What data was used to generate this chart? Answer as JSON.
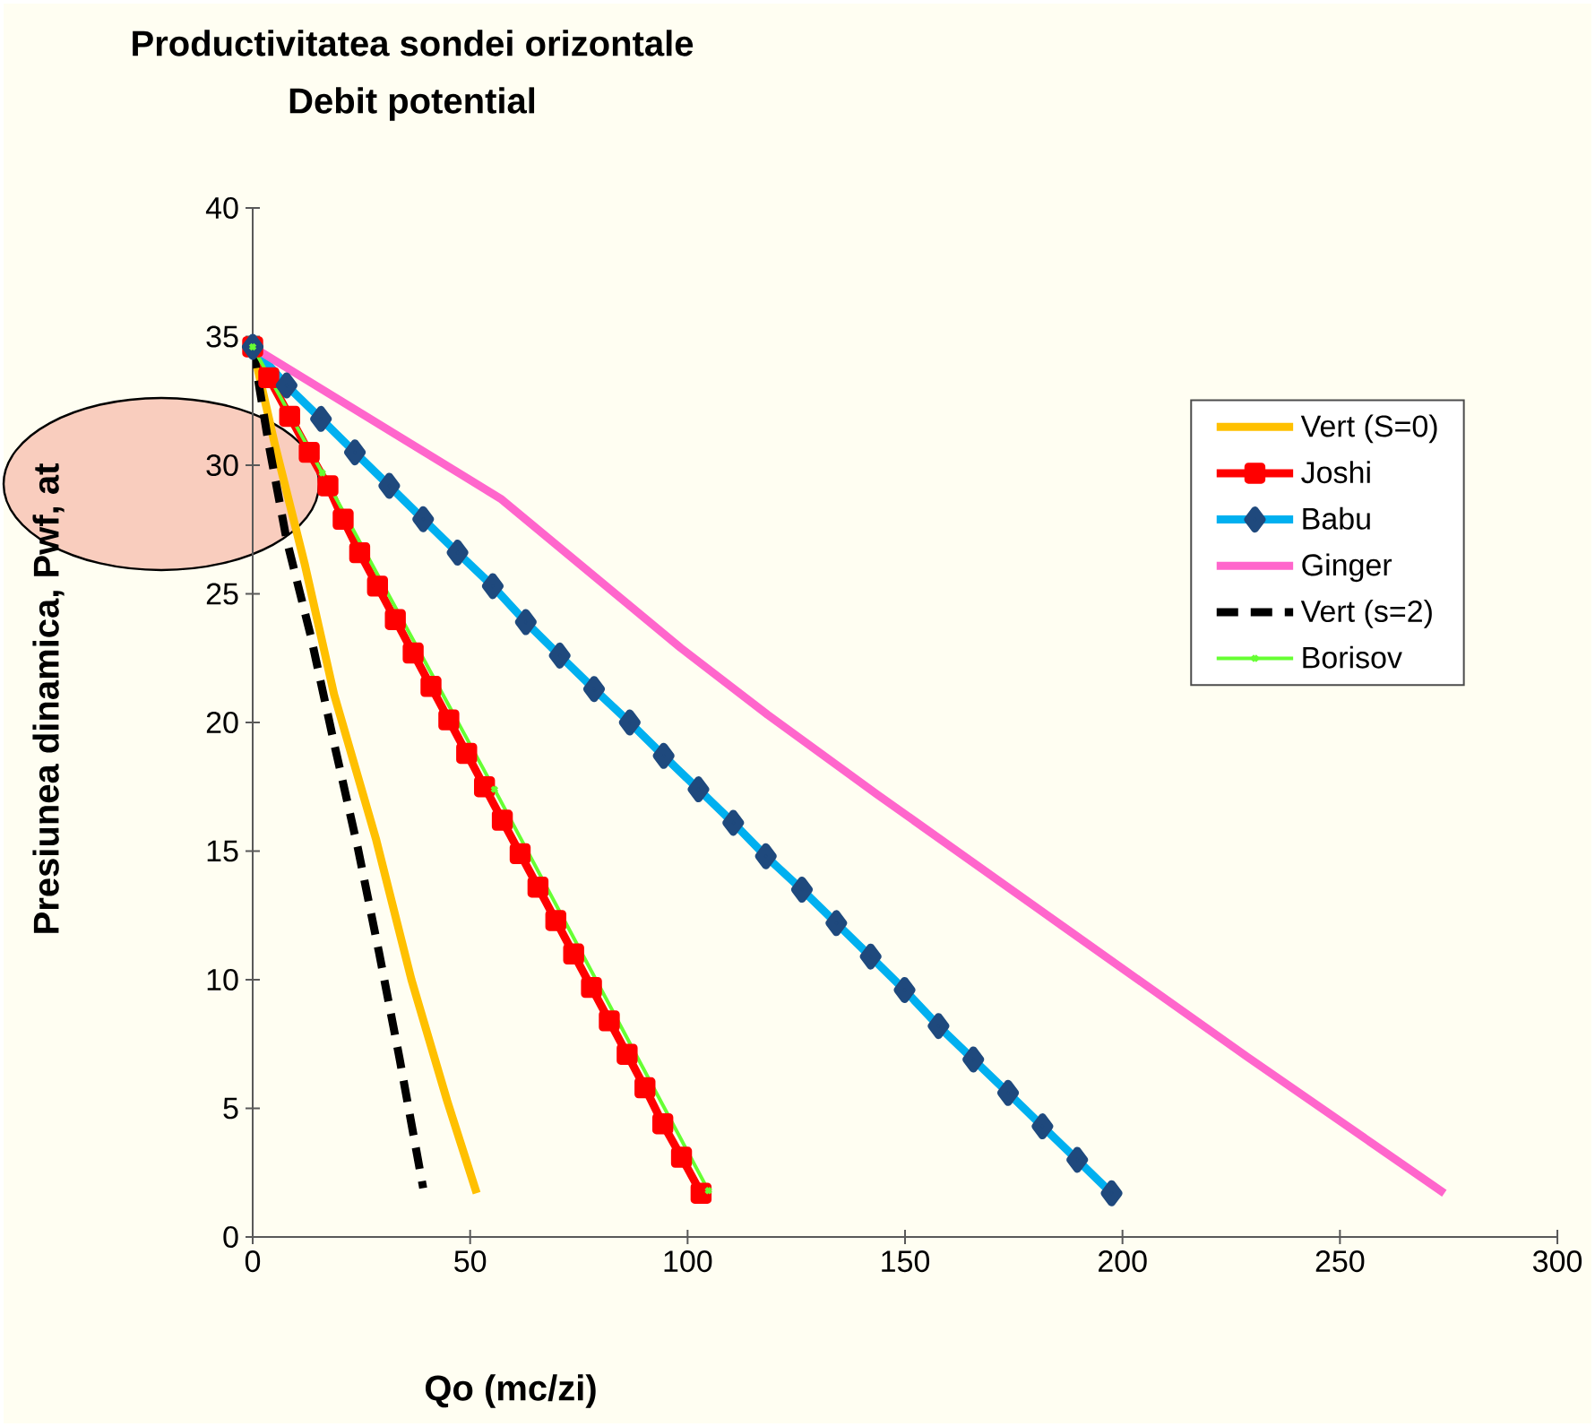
{
  "chart_data": {
    "type": "line",
    "title": "Productivitatea sondei orizontale",
    "subtitle": "Debit potential",
    "xlabel": "Qo (mc/zi)",
    "ylabel": "Presiunea dinamica, Pwf, at",
    "xlim": [
      0,
      300
    ],
    "ylim": [
      0,
      40
    ],
    "xticks": [
      0,
      50,
      100,
      150,
      200,
      250,
      300
    ],
    "yticks": [
      0,
      5,
      10,
      15,
      20,
      25,
      30,
      35,
      40
    ],
    "legend": "right",
    "series": [
      {
        "name": "Vert (S=0)",
        "color": "#ffc000",
        "marker": "none",
        "line_style": "solid",
        "x": [
          0,
          5.1,
          11.9,
          18.7,
          28.3,
          36.5,
          44.7,
          51.5
        ],
        "values": [
          34.6,
          30.8,
          26.2,
          21.1,
          15.5,
          10.0,
          5.3,
          1.7
        ]
      },
      {
        "name": "Joshi",
        "color": "#ff0000",
        "marker": "square",
        "line_style": "solid",
        "x": [
          0,
          3.7,
          8.5,
          13.0,
          17.3,
          20.8,
          24.6,
          28.7,
          32.8,
          36.9,
          41.0,
          45.1,
          49.2,
          53.3,
          57.4,
          61.5,
          65.6,
          69.7,
          73.8,
          77.9,
          82.0,
          86.1,
          90.2,
          94.3,
          98.6,
          103.1
        ],
        "values": [
          34.6,
          33.4,
          31.9,
          30.5,
          29.2,
          27.9,
          26.6,
          25.3,
          24.0,
          22.7,
          21.4,
          20.1,
          18.8,
          17.5,
          16.2,
          14.9,
          13.6,
          12.3,
          11.0,
          9.7,
          8.4,
          7.1,
          5.8,
          4.4,
          3.1,
          1.7
        ]
      },
      {
        "name": "Babu",
        "color": "#00b0f0",
        "marker": "diamond",
        "line_style": "solid",
        "x": [
          0,
          7.8,
          15.7,
          23.5,
          31.4,
          39.2,
          47.1,
          55.2,
          62.8,
          70.6,
          78.5,
          86.7,
          94.5,
          102.5,
          110.5,
          118.0,
          126.3,
          134.2,
          142.1,
          149.9,
          157.7,
          165.7,
          173.7,
          181.6,
          189.6,
          197.5
        ],
        "values": [
          34.6,
          33.1,
          31.8,
          30.5,
          29.2,
          27.9,
          26.6,
          25.3,
          23.9,
          22.6,
          21.3,
          20.0,
          18.7,
          17.4,
          16.1,
          14.8,
          13.5,
          12.2,
          10.9,
          9.6,
          8.2,
          6.9,
          5.6,
          4.3,
          3.0,
          1.7
        ]
      },
      {
        "name": "Ginger",
        "color": "#ff66cc",
        "marker": "none",
        "line_style": "solid",
        "x": [
          0,
          57,
          98.4,
          118.4,
          143.6,
          186.1,
          228.7,
          274
        ],
        "values": [
          34.6,
          28.7,
          22.9,
          20.3,
          17.2,
          12.1,
          7.0,
          1.7
        ]
      },
      {
        "name": "Vert (s=2)",
        "color": "#000000",
        "marker": "none",
        "line_style": "dashed",
        "x": [
          0,
          3.7,
          7.8,
          13.3,
          18.7,
          24.2,
          29.0,
          33.7,
          39.2
        ],
        "values": [
          34.6,
          30.8,
          27.1,
          23.4,
          19.2,
          15.1,
          11.1,
          7.0,
          1.9
        ]
      },
      {
        "name": "Borisov",
        "color": "#66ff33",
        "marker": "cross",
        "line_style": "solid",
        "x": [
          0,
          16.0,
          55.6,
          104.8
        ],
        "values": [
          34.6,
          29.7,
          17.4,
          1.8
        ]
      }
    ]
  }
}
